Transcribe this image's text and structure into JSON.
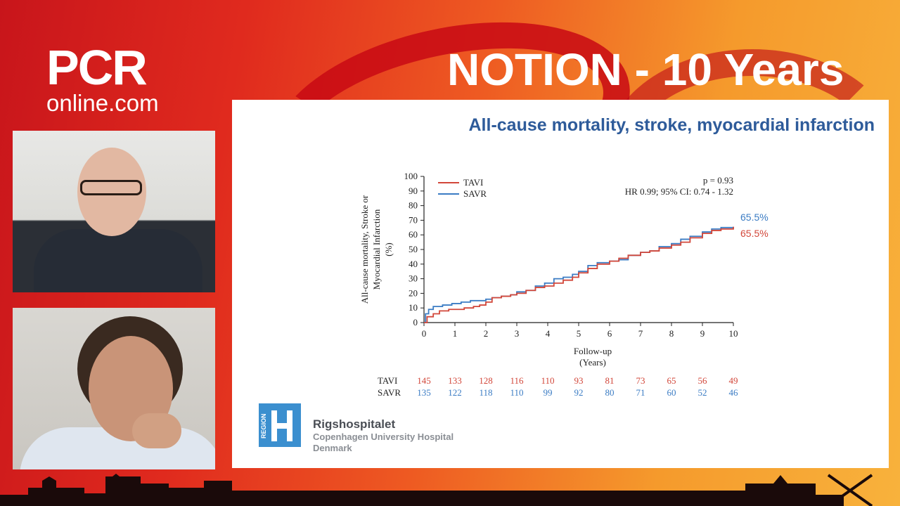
{
  "branding": {
    "logo_main": "PCR",
    "logo_sub": "online.com",
    "banner_title": "NOTION - 10 Years"
  },
  "slide": {
    "title": "All-cause mortality, stroke, myocardial infarction",
    "hospital": {
      "badge_text": "REGION",
      "name": "Rigshospitalet",
      "line2": "Copenhagen University Hospital",
      "line3": "Denmark"
    }
  },
  "colors": {
    "tavi": "#d2473a",
    "savr": "#3b7cc4",
    "title": "#2e5b9a"
  },
  "chart_data": {
    "type": "line",
    "title": "",
    "xlabel": "Follow-up\n(Years)",
    "ylabel": "All-cause mortality, Stroke or\nMyocardial Infarction\n(%)",
    "xlim": [
      0,
      10
    ],
    "ylim": [
      0,
      100
    ],
    "x_ticks": [
      0,
      1,
      2,
      3,
      4,
      5,
      6,
      7,
      8,
      9,
      10
    ],
    "y_ticks": [
      0,
      10,
      20,
      30,
      40,
      50,
      60,
      70,
      80,
      90,
      100
    ],
    "grid": false,
    "legend_position": "top-left",
    "annotation_p": "p = 0.93",
    "annotation_hr": "HR 0.99; 95% CI: 0.74 - 1.32",
    "series": [
      {
        "name": "TAVI",
        "color": "#d2473a",
        "end_label": "65.5%",
        "x": [
          0,
          0.1,
          0.3,
          0.5,
          0.8,
          1.0,
          1.3,
          1.6,
          1.8,
          2.0,
          2.2,
          2.5,
          2.8,
          3.0,
          3.3,
          3.6,
          3.9,
          4.2,
          4.5,
          4.8,
          5.0,
          5.3,
          5.6,
          6.0,
          6.3,
          6.6,
          7.0,
          7.3,
          7.6,
          8.0,
          8.3,
          8.6,
          9.0,
          9.3,
          9.6,
          10.0
        ],
        "y": [
          0,
          4,
          6,
          8,
          9,
          9,
          10,
          11,
          12,
          14,
          17,
          18,
          19,
          20,
          22,
          24,
          25,
          27,
          29,
          31,
          34,
          37,
          40,
          42,
          44,
          46,
          48,
          49,
          51,
          53,
          55,
          58,
          61,
          63,
          64,
          65.5
        ]
      },
      {
        "name": "SAVR",
        "color": "#3b7cc4",
        "end_label": "65.5%",
        "x": [
          0,
          0.05,
          0.15,
          0.3,
          0.6,
          0.9,
          1.2,
          1.5,
          1.8,
          2.0,
          2.2,
          2.5,
          2.8,
          3.0,
          3.3,
          3.6,
          3.9,
          4.2,
          4.5,
          4.8,
          5.0,
          5.3,
          5.6,
          6.0,
          6.3,
          6.6,
          7.0,
          7.3,
          7.6,
          8.0,
          8.3,
          8.6,
          9.0,
          9.3,
          9.6,
          10.0
        ],
        "y": [
          0,
          6,
          9,
          11,
          12,
          13,
          14,
          15,
          15,
          16,
          17,
          18,
          19,
          21,
          22,
          25,
          27,
          30,
          31,
          33,
          35,
          39,
          41,
          42,
          43,
          46,
          48,
          49,
          52,
          54,
          57,
          59,
          62,
          64,
          65,
          65.5
        ]
      }
    ],
    "risk_table": {
      "times": [
        0,
        1,
        2,
        3,
        4,
        5,
        6,
        7,
        8,
        9,
        10
      ],
      "rows": [
        {
          "label": "TAVI",
          "values": [
            145,
            133,
            128,
            116,
            110,
            93,
            81,
            73,
            65,
            56,
            49
          ]
        },
        {
          "label": "SAVR",
          "values": [
            135,
            122,
            118,
            110,
            99,
            92,
            80,
            71,
            60,
            52,
            46
          ]
        }
      ]
    }
  }
}
